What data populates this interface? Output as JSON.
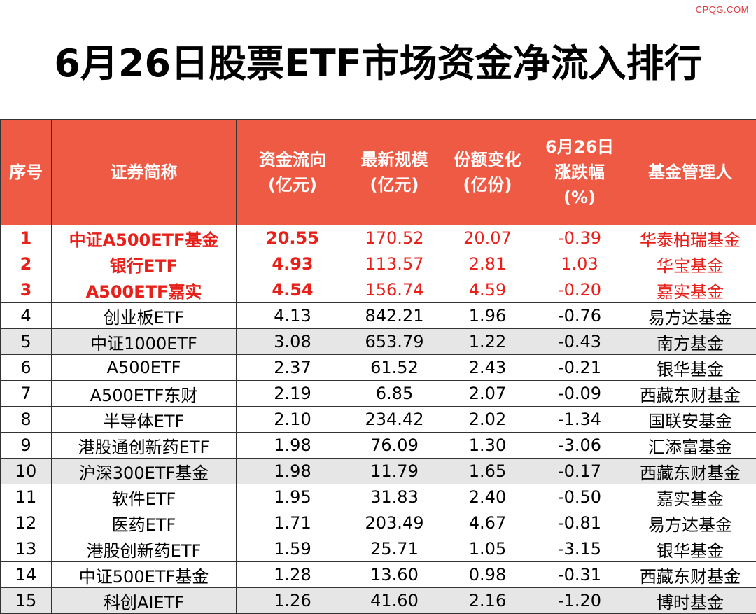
{
  "watermark": "CPQG.COM",
  "title": "6月26日股票ETF市场资金净流入排行",
  "headers": [
    {
      "lines": [
        "序号"
      ]
    },
    {
      "lines": [
        "证券简称"
      ]
    },
    {
      "lines": [
        "资金流向",
        "(亿元)"
      ]
    },
    {
      "lines": [
        "最新规模",
        "(亿元)"
      ]
    },
    {
      "lines": [
        "份额变化",
        "(亿份)"
      ]
    },
    {
      "lines": [
        "6月26日",
        "涨跌幅",
        "(%)"
      ]
    },
    {
      "lines": [
        "基金管理人"
      ]
    }
  ],
  "rows": [
    {
      "no": "1",
      "name": "中证A500ETF基金",
      "flow": "20.55",
      "scale": "170.52",
      "share": "20.07",
      "change": "-0.39",
      "manager": "华泰柏瑞基金",
      "highlight": true,
      "shaded": false
    },
    {
      "no": "2",
      "name": "银行ETF",
      "flow": "4.93",
      "scale": "113.57",
      "share": "2.81",
      "change": "1.03",
      "manager": "华宝基金",
      "highlight": true,
      "shaded": false
    },
    {
      "no": "3",
      "name": "A500ETF嘉实",
      "flow": "4.54",
      "scale": "156.74",
      "share": "4.59",
      "change": "-0.20",
      "manager": "嘉实基金",
      "highlight": true,
      "shaded": false
    },
    {
      "no": "4",
      "name": "创业板ETF",
      "flow": "4.13",
      "scale": "842.21",
      "share": "1.96",
      "change": "-0.76",
      "manager": "易方达基金",
      "highlight": false,
      "shaded": false
    },
    {
      "no": "5",
      "name": "中证1000ETF",
      "flow": "3.08",
      "scale": "653.79",
      "share": "1.22",
      "change": "-0.43",
      "manager": "南方基金",
      "highlight": false,
      "shaded": true
    },
    {
      "no": "6",
      "name": "A500ETF",
      "flow": "2.37",
      "scale": "61.52",
      "share": "2.43",
      "change": "-0.21",
      "manager": "银华基金",
      "highlight": false,
      "shaded": false
    },
    {
      "no": "7",
      "name": "A500ETF东财",
      "flow": "2.19",
      "scale": "6.85",
      "share": "2.07",
      "change": "-0.09",
      "manager": "西藏东财基金",
      "highlight": false,
      "shaded": false
    },
    {
      "no": "8",
      "name": "半导体ETF",
      "flow": "2.10",
      "scale": "234.42",
      "share": "2.02",
      "change": "-1.34",
      "manager": "国联安基金",
      "highlight": false,
      "shaded": false
    },
    {
      "no": "9",
      "name": "港股通创新药ETF",
      "flow": "1.98",
      "scale": "76.09",
      "share": "1.30",
      "change": "-3.06",
      "manager": "汇添富基金",
      "highlight": false,
      "shaded": false
    },
    {
      "no": "10",
      "name": "沪深300ETF基金",
      "flow": "1.98",
      "scale": "11.79",
      "share": "1.65",
      "change": "-0.17",
      "manager": "西藏东财基金",
      "highlight": false,
      "shaded": true
    },
    {
      "no": "11",
      "name": "软件ETF",
      "flow": "1.95",
      "scale": "31.83",
      "share": "2.40",
      "change": "-0.50",
      "manager": "嘉实基金",
      "highlight": false,
      "shaded": false
    },
    {
      "no": "12",
      "name": "医药ETF",
      "flow": "1.71",
      "scale": "203.49",
      "share": "4.67",
      "change": "-0.81",
      "manager": "易方达基金",
      "highlight": false,
      "shaded": false
    },
    {
      "no": "13",
      "name": "港股创新药ETF",
      "flow": "1.59",
      "scale": "25.71",
      "share": "1.05",
      "change": "-3.15",
      "manager": "银华基金",
      "highlight": false,
      "shaded": false
    },
    {
      "no": "14",
      "name": "中证500ETF基金",
      "flow": "1.28",
      "scale": "13.60",
      "share": "0.98",
      "change": "-0.31",
      "manager": "西藏东财基金",
      "highlight": false,
      "shaded": false
    },
    {
      "no": "15",
      "name": "科创AIETF",
      "flow": "1.26",
      "scale": "41.60",
      "share": "2.16",
      "change": "-1.20",
      "manager": "博时基金",
      "highlight": false,
      "shaded": true
    }
  ],
  "colors": {
    "header_bg": "#ef5a45",
    "highlight_text": "#e8201a",
    "shade_bg": "#e6e6e6"
  }
}
